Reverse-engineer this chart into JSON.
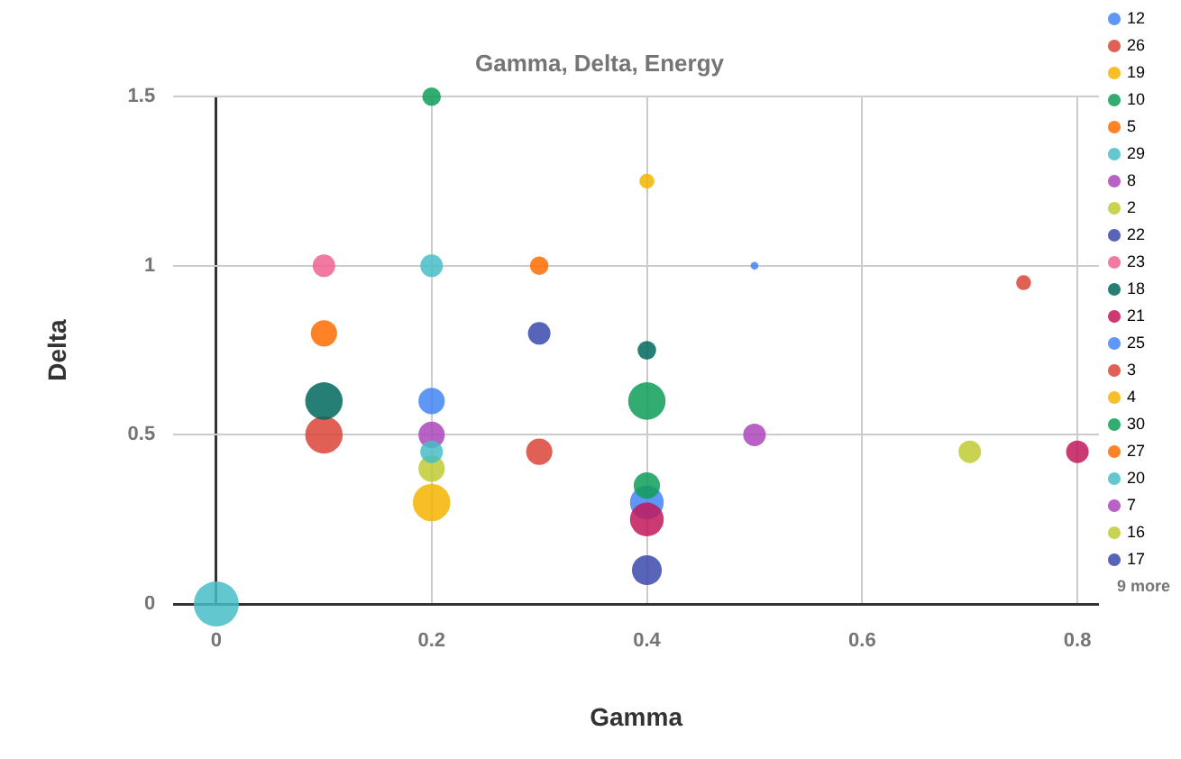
{
  "chart_data": {
    "type": "bubble",
    "title": "Gamma, Delta, Energy",
    "xlabel": "Gamma",
    "ylabel": "Delta",
    "xlim": [
      -0.04,
      0.82
    ],
    "xticks": [
      0,
      0.2,
      0.4,
      0.6,
      0.8
    ],
    "ylim": [
      0,
      1.5
    ],
    "yticks": [
      0,
      0.5,
      1,
      1.5
    ],
    "grid": true,
    "legend": "right",
    "annotations": [
      "9 more"
    ],
    "series": [
      {
        "name": "12",
        "color": "#4285f4",
        "x": [
          0.5
        ],
        "values": [
          1
        ],
        "sizes": [
          0.03
        ]
      },
      {
        "name": "26",
        "color": "#db4437",
        "x": [
          0.75
        ],
        "values": [
          0.95
        ],
        "sizes": [
          0.11
        ]
      },
      {
        "name": "19",
        "color": "#f4b400",
        "x": [
          0.4
        ],
        "values": [
          1.25
        ],
        "sizes": [
          0.11
        ]
      },
      {
        "name": "10",
        "color": "#0f9d58",
        "x": [
          0.2
        ],
        "values": [
          1.5
        ],
        "sizes": [
          0.17
        ]
      },
      {
        "name": "5",
        "color": "#ff6d00",
        "x": [
          0.3
        ],
        "values": [
          1
        ],
        "sizes": [
          0.17
        ]
      },
      {
        "name": "29",
        "color": "#46bdc6",
        "x": [
          0.2
        ],
        "values": [
          1
        ],
        "sizes": [
          0.25
        ]
      },
      {
        "name": "8",
        "color": "#ab47bc",
        "x": [
          0.5
        ],
        "values": [
          0.5
        ],
        "sizes": [
          0.25
        ]
      },
      {
        "name": "2",
        "color": "#c0ca33",
        "x": [
          0.7
        ],
        "values": [
          0.45
        ],
        "sizes": [
          0.25
        ]
      },
      {
        "name": "22",
        "color": "#3949ab",
        "x": [
          0.3
        ],
        "values": [
          0.8
        ],
        "sizes": [
          0.25
        ]
      },
      {
        "name": "23",
        "color": "#f06292",
        "x": [
          0.1
        ],
        "values": [
          1
        ],
        "sizes": [
          0.25
        ]
      },
      {
        "name": "18",
        "color": "#00695c",
        "x": [
          0.1
        ],
        "values": [
          0.6
        ],
        "sizes": [
          0.69
        ]
      },
      {
        "name": "21",
        "color": "#c2185b",
        "x": [
          0.8
        ],
        "values": [
          0.45
        ],
        "sizes": [
          0.25
        ]
      },
      {
        "name": "25",
        "color": "#4285f4",
        "x": [
          0.2
        ],
        "values": [
          0.6
        ],
        "sizes": [
          0.34
        ]
      },
      {
        "name": "3",
        "color": "#db4437",
        "x": [
          0.3
        ],
        "values": [
          0.45
        ],
        "sizes": [
          0.34
        ]
      },
      {
        "name": "4",
        "color": "#f4b400",
        "x": [
          0.2
        ],
        "values": [
          0.3
        ],
        "sizes": [
          0.69
        ]
      },
      {
        "name": "30",
        "color": "#0f9d58",
        "x": [
          0.4
        ],
        "values": [
          0.35
        ],
        "sizes": [
          0.34
        ]
      },
      {
        "name": "27",
        "color": "#ff6d00",
        "x": [
          0.1
        ],
        "values": [
          0.8
        ],
        "sizes": [
          0.34
        ]
      },
      {
        "name": "20",
        "color": "#46bdc6",
        "x": [
          0.2
        ],
        "values": [
          0.45
        ],
        "sizes": [
          0.25
        ]
      },
      {
        "name": "7",
        "color": "#ab47bc",
        "x": [
          0.2
        ],
        "values": [
          0.5
        ],
        "sizes": [
          0.34
        ]
      },
      {
        "name": "16",
        "color": "#c0ca33",
        "x": [
          0.2
        ],
        "values": [
          0.4
        ],
        "sizes": [
          0.34
        ]
      },
      {
        "name": "17",
        "color": "#3949ab",
        "x": [
          0.4
        ],
        "values": [
          0.1
        ],
        "sizes": [
          0.44
        ]
      },
      {
        "color": "#00695c",
        "x": [
          0.4
        ],
        "values": [
          0.75
        ],
        "sizes": [
          0.17
        ]
      },
      {
        "color": "#c2185b",
        "x": [
          0.4
        ],
        "values": [
          0.25
        ],
        "sizes": [
          0.56
        ]
      },
      {
        "color": "#4285f4",
        "x": [
          0.4
        ],
        "values": [
          0.3
        ],
        "sizes": [
          0.56
        ]
      },
      {
        "color": "#db4437",
        "x": [
          0.1
        ],
        "values": [
          0.5
        ],
        "sizes": [
          0.69
        ]
      },
      {
        "color": "#0f9d58",
        "x": [
          0.4
        ],
        "values": [
          0.6
        ],
        "sizes": [
          0.69
        ]
      },
      {
        "color": "#46bdc6",
        "x": [
          0
        ],
        "values": [
          0
        ],
        "sizes": [
          1
        ]
      }
    ]
  }
}
